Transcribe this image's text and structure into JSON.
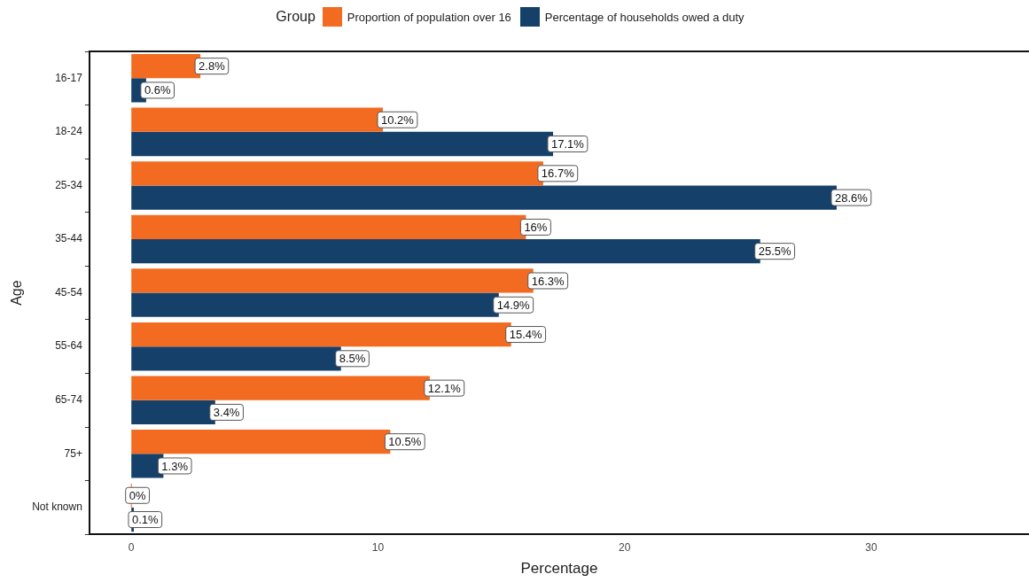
{
  "chart_data": {
    "type": "bar",
    "orientation": "horizontal",
    "xlabel": "Percentage",
    "ylabel": "Age",
    "legend_title": "Group",
    "legend": "top",
    "categories": [
      "16-17",
      "18-24",
      "25-34",
      "35-44",
      "45-54",
      "55-64",
      "65-74",
      "75+",
      "Not known"
    ],
    "series": [
      {
        "name": "Proportion of population over 16",
        "color": "#f26b21",
        "values": [
          2.8,
          10.2,
          16.7,
          16,
          16.3,
          15.4,
          12.1,
          10.5,
          0
        ],
        "value_labels": [
          "2.8%",
          "10.2%",
          "16.7%",
          "16%",
          "16.3%",
          "15.4%",
          "12.1%",
          "10.5%",
          "0%"
        ]
      },
      {
        "name": "Percentage of households owed a duty",
        "color": "#15406a",
        "values": [
          0.6,
          17.1,
          28.6,
          25.5,
          14.9,
          8.5,
          3.4,
          1.3,
          0.1
        ],
        "value_labels": [
          "0.6%",
          "17.1%",
          "28.6%",
          "25.5%",
          "14.9%",
          "8.5%",
          "3.4%",
          "1.3%",
          "0.1%"
        ]
      }
    ],
    "xlim": [
      -1.7,
      36.4
    ],
    "xticks": [
      0,
      10,
      20,
      30
    ],
    "grid": false
  }
}
